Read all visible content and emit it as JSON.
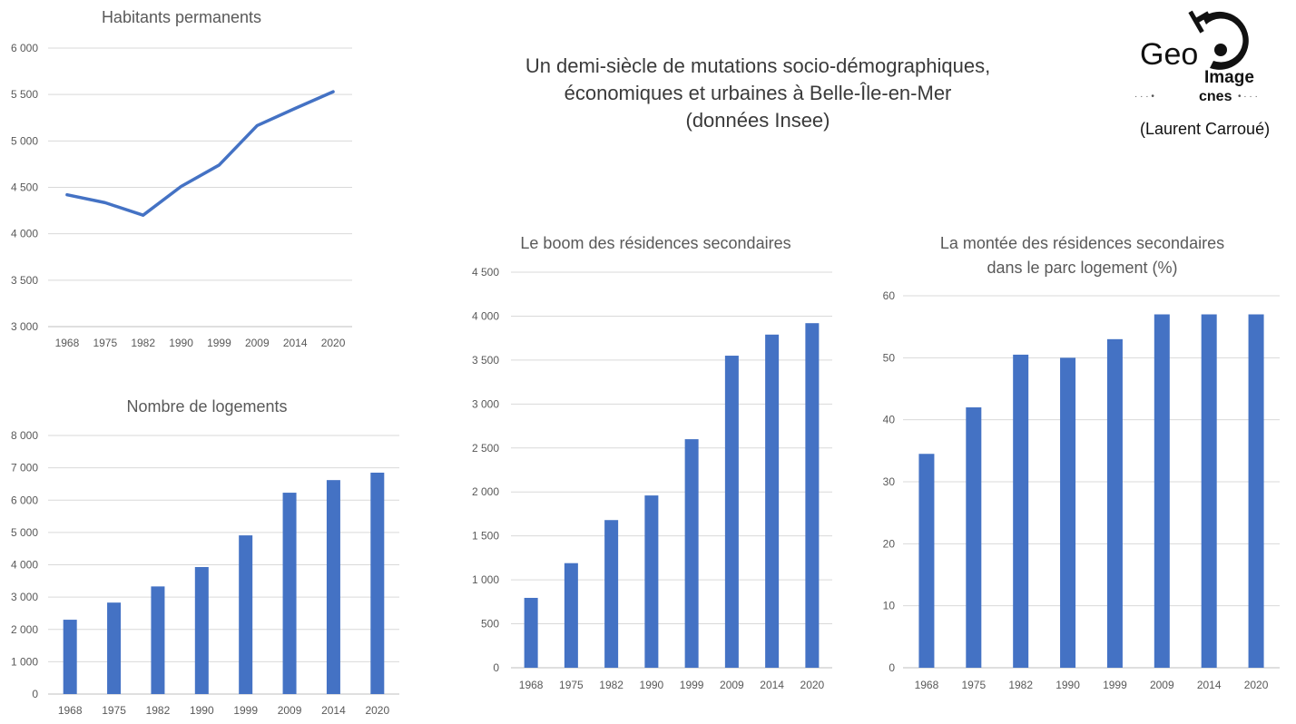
{
  "header": {
    "title_lines": [
      "Un demi-siècle de mutations socio-démographiques,",
      "économiques et urbaines à Belle-Île-en-Mer",
      "(données Insee)"
    ],
    "logo": {
      "geo": "Geo",
      "image": "Image",
      "cnes": "cnes"
    },
    "author": "(Laurent Carroué)"
  },
  "colors": {
    "series": "#4472C4",
    "grid": "#D9D9D9",
    "text": "#595959"
  },
  "chart_data": [
    {
      "id": "habitants",
      "type": "line",
      "title": "Habitants permanents",
      "categories": [
        "1968",
        "1975",
        "1982",
        "1990",
        "1999",
        "2009",
        "2014",
        "2020"
      ],
      "values": [
        4420,
        4335,
        4200,
        4510,
        4740,
        5165,
        5350,
        5530
      ],
      "ylim": [
        3000,
        6000
      ],
      "yticks": [
        3000,
        3500,
        4000,
        4500,
        5000,
        5500,
        6000
      ],
      "ytick_labels": [
        "3 000",
        "3 500",
        "4 000",
        "4 500",
        "5 000",
        "5 500",
        "6 000"
      ],
      "grid": true,
      "xlabel": "",
      "ylabel": ""
    },
    {
      "id": "logements",
      "type": "bar",
      "title": "Nombre de logements",
      "categories": [
        "1968",
        "1975",
        "1982",
        "1990",
        "1999",
        "2009",
        "2014",
        "2020"
      ],
      "values": [
        2300,
        2830,
        3330,
        3930,
        4910,
        6230,
        6620,
        6850
      ],
      "ylim": [
        0,
        8000
      ],
      "yticks": [
        0,
        1000,
        2000,
        3000,
        4000,
        5000,
        6000,
        7000,
        8000
      ],
      "ytick_labels": [
        "0",
        "1 000",
        "2 000",
        "3 000",
        "4 000",
        "5 000",
        "6 000",
        "7 000",
        "8 000"
      ],
      "grid": true,
      "xlabel": "",
      "ylabel": ""
    },
    {
      "id": "residences",
      "type": "bar",
      "title": "Le boom des résidences secondaires",
      "categories": [
        "1968",
        "1975",
        "1982",
        "1990",
        "1999",
        "2009",
        "2014",
        "2020"
      ],
      "values": [
        795,
        1190,
        1680,
        1960,
        2600,
        3550,
        3790,
        3920
      ],
      "ylim": [
        0,
        4500
      ],
      "yticks": [
        0,
        500,
        1000,
        1500,
        2000,
        2500,
        3000,
        3500,
        4000,
        4500
      ],
      "ytick_labels": [
        "0",
        "500",
        "1 000",
        "1 500",
        "2 000",
        "2 500",
        "3 000",
        "3 500",
        "4 000",
        "4 500"
      ],
      "grid": true,
      "xlabel": "",
      "ylabel": ""
    },
    {
      "id": "part",
      "type": "bar",
      "title": "La montée des résidences secondaires",
      "title2": "dans le parc logement (%)",
      "categories": [
        "1968",
        "1975",
        "1982",
        "1990",
        "1999",
        "2009",
        "2014",
        "2020"
      ],
      "values": [
        34.5,
        42,
        50.5,
        50,
        53,
        57,
        57,
        57
      ],
      "ylim": [
        0,
        60
      ],
      "yticks": [
        0,
        10,
        20,
        30,
        40,
        50,
        60
      ],
      "ytick_labels": [
        "0",
        "10",
        "20",
        "30",
        "40",
        "50",
        "60"
      ],
      "grid": true,
      "xlabel": "",
      "ylabel": ""
    }
  ]
}
